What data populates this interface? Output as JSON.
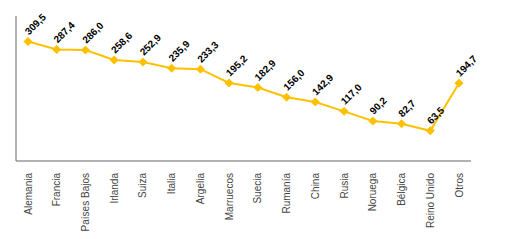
{
  "chart_data": {
    "type": "line",
    "categories": [
      "Alemania",
      "Francia",
      "Países Bajos",
      "Irlanda",
      "Suiza",
      "Italia",
      "Argelia",
      "Marruecos",
      "Suecia",
      "Rumanía",
      "China",
      "Rusia",
      "Noruega",
      "Bélgica",
      "Reino Unido",
      "Otros"
    ],
    "values": [
      309.5,
      287.4,
      286.0,
      258.6,
      252.9,
      235.9,
      233.3,
      195.2,
      182.9,
      156.0,
      142.9,
      117.0,
      90.2,
      82.7,
      63.5,
      194.7
    ],
    "value_labels": [
      "309,5",
      "287,4",
      "286,0",
      "258,6",
      "252,9",
      "235,9",
      "233,3",
      "195,2",
      "182,9",
      "156,0",
      "142,9",
      "117,0",
      "90,2",
      "82,7",
      "63,5",
      "194,7"
    ],
    "color": "#FFC000",
    "marker": "diamond",
    "ylim": [
      -20,
      380
    ],
    "data_labels": true,
    "tick_labels": "x",
    "grid": false
  }
}
